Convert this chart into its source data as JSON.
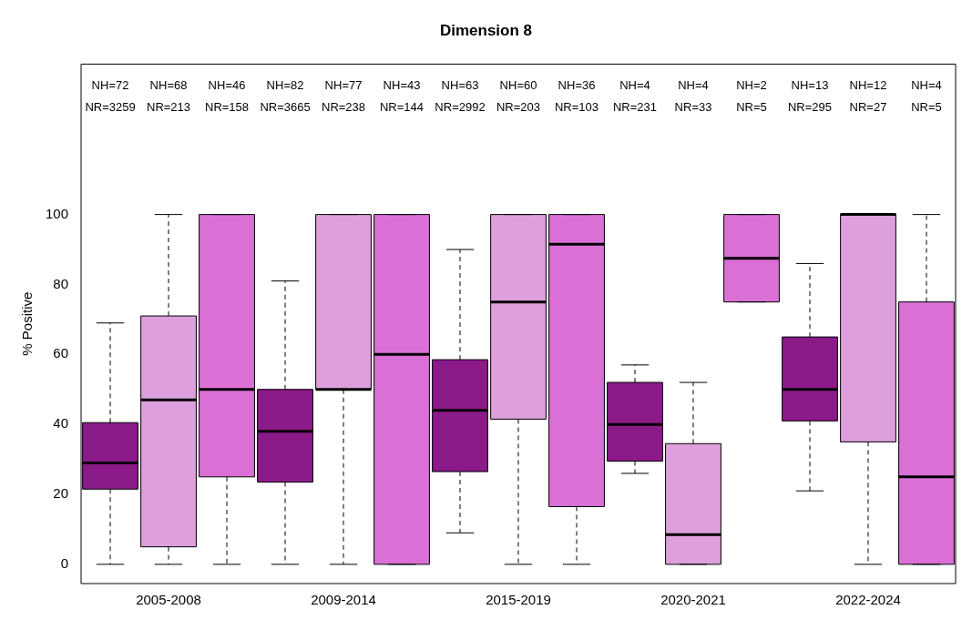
{
  "chart_data": {
    "type": "box",
    "title": "Dimension 8",
    "ylabel": "% Positive",
    "categories": [
      null,
      "2005-2008",
      null,
      null,
      "2009-2014",
      null,
      null,
      "2015-2019",
      null,
      null,
      "2020-2021",
      null,
      null,
      "2022-2024",
      null
    ],
    "colors": [
      "#8b1a89",
      "#dda0dd",
      "#da70d6",
      "#8b1a89",
      "#dda0dd",
      "#da70d6",
      "#8b1a89",
      "#dda0dd",
      "#da70d6",
      "#8b1a89",
      "#dda0dd",
      "#da70d6",
      "#8b1a89",
      "#dda0dd",
      "#da70d6"
    ],
    "boxes": [
      {
        "low": 0,
        "q1": 21.5,
        "median": 29,
        "q3": 40.5,
        "high": 69
      },
      {
        "low": 0,
        "q1": 5,
        "median": 47,
        "q3": 71,
        "high": 100
      },
      {
        "low": 0,
        "q1": 25,
        "median": 50,
        "q3": 100,
        "high": 100
      },
      {
        "low": 0,
        "q1": 23.5,
        "median": 38,
        "q3": 50,
        "high": 81
      },
      {
        "low": 0,
        "q1": 50,
        "median": 50,
        "q3": 100,
        "high": 100
      },
      {
        "low": 0,
        "q1": 0,
        "median": 60,
        "q3": 100,
        "high": 100
      },
      {
        "low": 9,
        "q1": 26.5,
        "median": 44,
        "q3": 58.5,
        "high": 90
      },
      {
        "low": 0,
        "q1": 41.5,
        "median": 75,
        "q3": 100,
        "high": 100
      },
      {
        "low": 0,
        "q1": 16.5,
        "median": 91.5,
        "q3": 100,
        "high": 100
      },
      {
        "low": 26,
        "q1": 29.5,
        "median": 40,
        "q3": 52,
        "high": 57
      },
      {
        "low": 0,
        "q1": 0,
        "median": 8.5,
        "q3": 34.5,
        "high": 52
      },
      {
        "low": 75,
        "q1": 75,
        "median": 87.5,
        "q3": 100,
        "high": 100
      },
      {
        "low": 21,
        "q1": 41,
        "median": 50,
        "q3": 65,
        "high": 86
      },
      {
        "low": 0,
        "q1": 35,
        "median": 100,
        "q3": 100,
        "high": 100
      },
      {
        "low": 0,
        "q1": 0,
        "median": 25,
        "q3": 75,
        "high": 100
      }
    ],
    "annotations": [
      "NH=72",
      "NR=3259",
      "NH=68",
      "NR=213",
      "NH=46",
      "NR=158",
      "NH=82",
      "NR=3665",
      "NH=77",
      "NR=238",
      "NH=43",
      "NR=144",
      "NH=63",
      "NR=2992",
      "NH=60",
      "NR=203",
      "NH=36",
      "NR=103",
      "NH=4",
      "NR=231",
      "NH=4",
      "NR=33",
      "NH=2",
      "NR=5",
      "NH=13",
      "NR=295",
      "NH=12",
      "NR=27",
      "NH=4",
      "NR=5"
    ],
    "ylim": [
      -5.5,
      143
    ],
    "yticks": [
      0,
      20,
      40,
      60,
      80,
      100
    ],
    "grid": false,
    "legend": false
  }
}
